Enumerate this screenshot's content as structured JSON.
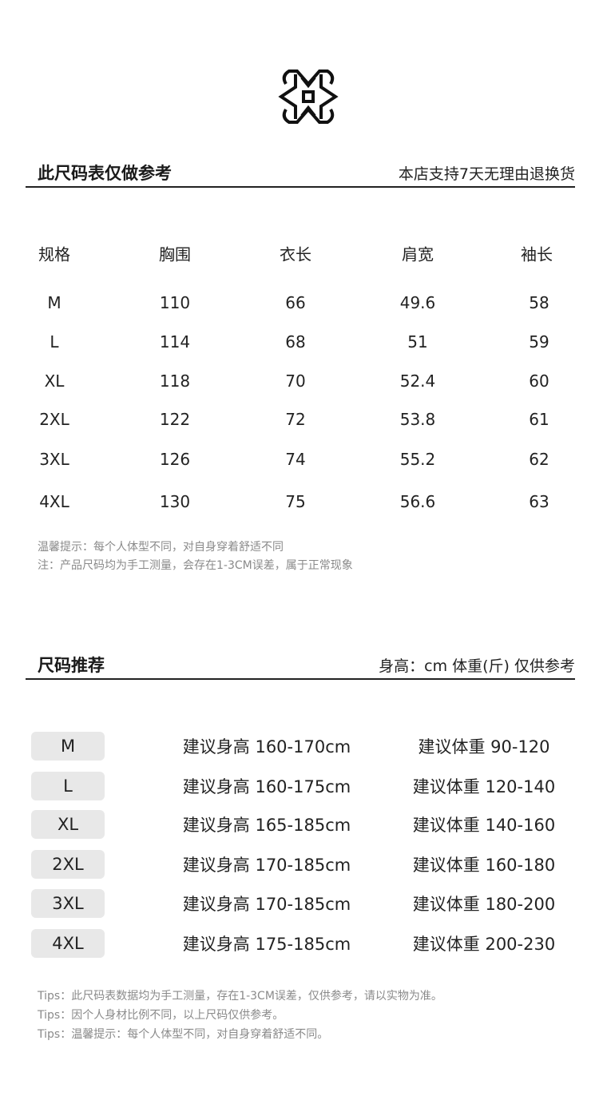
{
  "logo": {
    "icon": "knot-pattern-logo"
  },
  "size_chart": {
    "title": "此尺码表仅做参考",
    "policy": "本店支持7天无理由退换货",
    "headers": [
      "规格",
      "胸围",
      "衣长",
      "肩宽",
      "袖长"
    ],
    "rows": [
      [
        "M",
        "110",
        "66",
        "49.6",
        "58"
      ],
      [
        "L",
        "114",
        "68",
        "51",
        "59"
      ],
      [
        "XL",
        "118",
        "70",
        "52.4",
        "60"
      ],
      [
        "2XL",
        "122",
        "72",
        "53.8",
        "61"
      ],
      [
        "3XL",
        "126",
        "74",
        "55.2",
        "62"
      ],
      [
        "4XL",
        "130",
        "75",
        "56.6",
        "63"
      ]
    ],
    "notes": [
      "温馨提示：每个人体型不同，对自身穿着舒适不同",
      "注：产品尺码均为手工测量，会存在1-3CM误差，属于正常现象"
    ]
  },
  "recommendation": {
    "title": "尺码推荐",
    "unit_note": "身高：cm 体重(斤) 仅供参考",
    "rows": [
      {
        "size": "M",
        "height": "建议身高 160-170cm",
        "weight": "建议体重 90-120"
      },
      {
        "size": "L",
        "height": "建议身高 160-175cm",
        "weight": "建议体重 120-140"
      },
      {
        "size": "XL",
        "height": "建议身高 165-185cm",
        "weight": "建议体重 140-160"
      },
      {
        "size": "2XL",
        "height": "建议身高 170-185cm",
        "weight": "建议体重 160-180"
      },
      {
        "size": "3XL",
        "height": "建议身高 170-185cm",
        "weight": "建议体重 180-200"
      },
      {
        "size": "4XL",
        "height": "建议身高 175-185cm",
        "weight": "建议体重 200-230"
      }
    ],
    "tips": [
      "Tips：此尺码表数据均为手工测量，存在1-3CM误差，仅供参考，请以实物为准。",
      "Tips：因个人身材比例不同，以上尺码仅供参考。",
      "Tips：温馨提示：每个人体型不同，对自身穿着舒适不同。"
    ]
  }
}
